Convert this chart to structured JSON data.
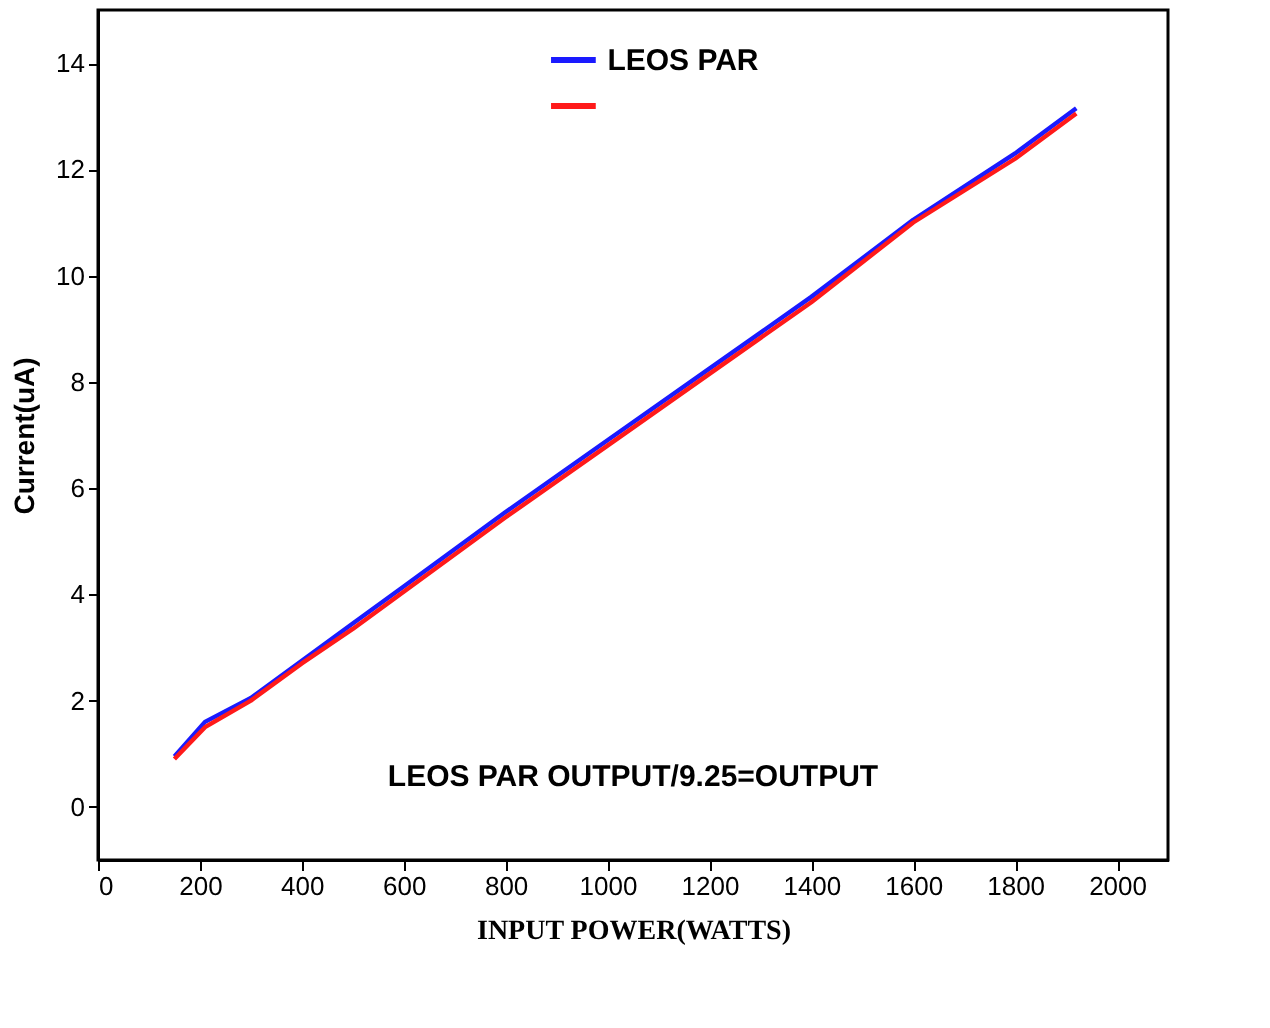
{
  "chart_data": {
    "type": "line",
    "xlabel": "INPUT POWER(WATTS)",
    "ylabel": "Current(uA)",
    "x": [
      150,
      210,
      300,
      400,
      500,
      600,
      800,
      1000,
      1200,
      1400,
      1600,
      1800,
      1920
    ],
    "series": [
      {
        "name": "LEOS PAR",
        "color": "#1a1aff",
        "values": [
          0.95,
          1.6,
          2.05,
          2.75,
          3.45,
          4.15,
          5.55,
          6.9,
          8.25,
          9.6,
          11.05,
          12.3,
          13.15
        ]
      },
      {
        "color": "#ff1a1a",
        "values": [
          0.9,
          1.5,
          2.0,
          2.7,
          3.35,
          4.05,
          5.45,
          6.8,
          8.15,
          9.5,
          11.0,
          12.2,
          13.05
        ]
      }
    ],
    "xlim": [
      0,
      2100
    ],
    "ylim": [
      -1,
      15
    ],
    "xticks": [
      0,
      200,
      400,
      600,
      800,
      1000,
      1200,
      1400,
      1600,
      1800,
      2000
    ],
    "yticks": [
      0,
      2,
      4,
      6,
      8,
      10,
      12,
      14
    ],
    "annotations": [
      "LEOS PAR OUTPUT/9.25=OUTPUT"
    ],
    "grid": false,
    "legend": "top",
    "marker": "none",
    "line_style": "solid"
  }
}
